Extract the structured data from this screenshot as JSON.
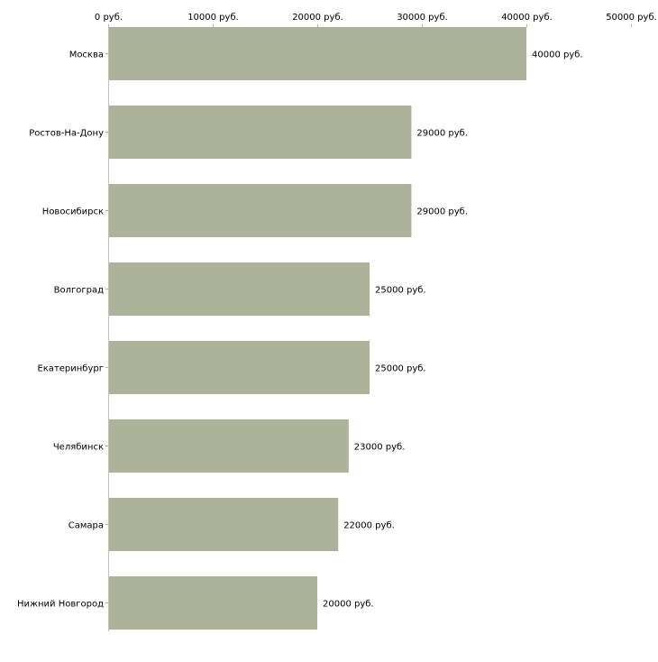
{
  "chart_data": {
    "type": "bar",
    "orientation": "horizontal",
    "title": "",
    "xlabel": "",
    "ylabel": "",
    "xlim": [
      0,
      50000
    ],
    "x_ticks": [
      0,
      10000,
      20000,
      30000,
      40000,
      50000
    ],
    "x_tick_labels": [
      "0 руб.",
      "10000 руб.",
      "20000 руб.",
      "30000 руб.",
      "40000 руб.",
      "50000 руб."
    ],
    "categories": [
      "Москва",
      "Ростов-На-Дону",
      "Новосибирск",
      "Волгоград",
      "Екатеринбург",
      "Челябинск",
      "Самара",
      "Нижний Новгород"
    ],
    "values": [
      40000,
      29000,
      29000,
      25000,
      25000,
      23000,
      22000,
      20000
    ],
    "data_labels": [
      "40000 руб.",
      "29000 руб.",
      "29000 руб.",
      "25000 руб.",
      "25000 руб.",
      "23000 руб.",
      "22000 руб.",
      "20000 руб."
    ],
    "grid": false,
    "legend": "none",
    "colors": {
      "bar": "#adb398",
      "axis": "#c0c0c0",
      "tick": "#b5b48a"
    }
  }
}
